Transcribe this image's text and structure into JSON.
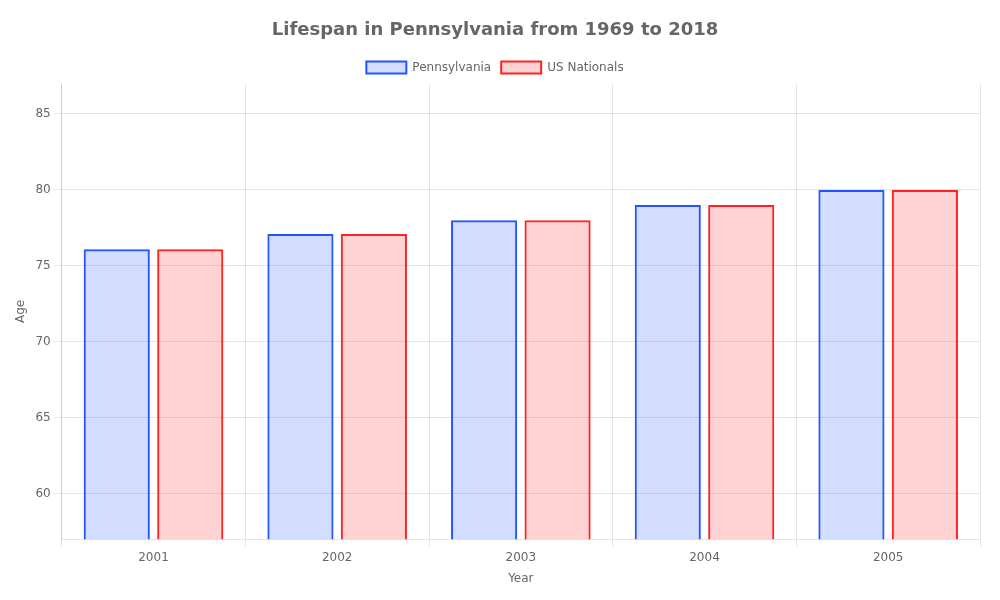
{
  "chart_data": {
    "type": "bar",
    "title": "Lifespan in Pennsylvania from 1969 to 2018",
    "xlabel": "Year",
    "ylabel": "Age",
    "categories": [
      "2001",
      "2002",
      "2003",
      "2004",
      "2005"
    ],
    "series": [
      {
        "name": "Pennsylvania",
        "color": "#2255ff",
        "values": [
          76.1,
          77.1,
          78.0,
          79.0,
          80.0
        ]
      },
      {
        "name": "US Nationals",
        "color": "#ff2222",
        "values": [
          76.1,
          77.1,
          78.0,
          79.0,
          80.0
        ]
      }
    ],
    "ylim": [
      57,
      87
    ],
    "yticks": [
      60,
      65,
      70,
      75,
      80,
      85
    ],
    "grid": true,
    "legend": "top"
  }
}
